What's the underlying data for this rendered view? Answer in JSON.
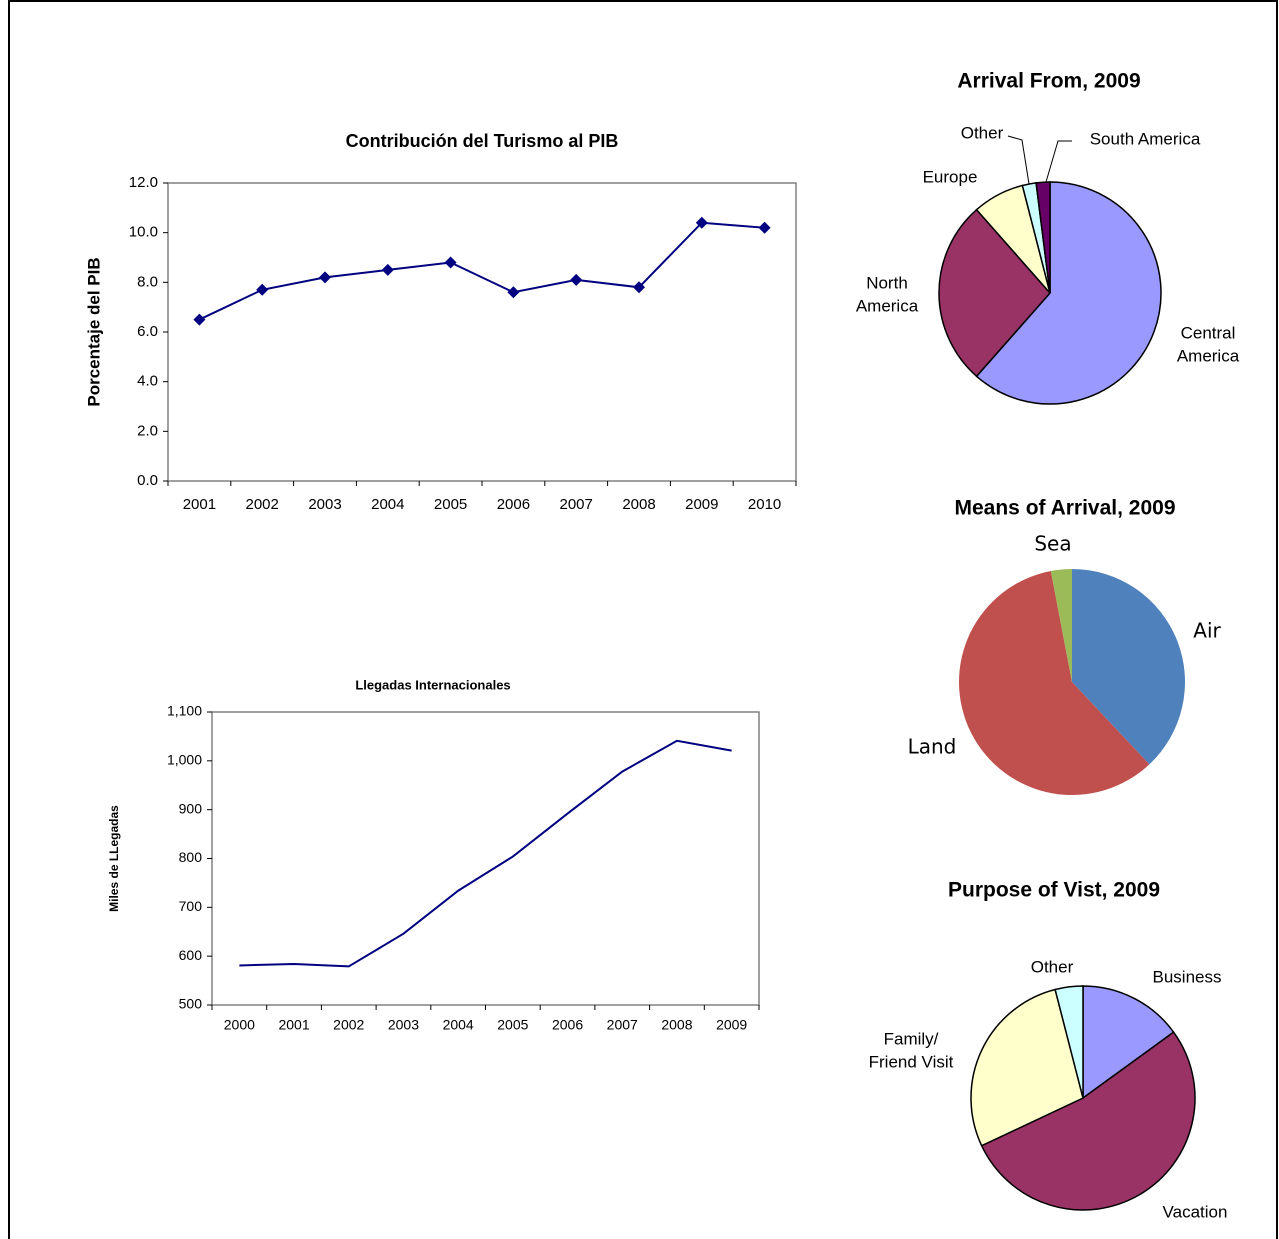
{
  "chart_data": [
    {
      "type": "line",
      "title": "Contribución del Turismo al PIB",
      "y_label": "Porcentaje del PIB",
      "categories": [
        "2001",
        "2002",
        "2003",
        "2004",
        "2005",
        "2006",
        "2007",
        "2008",
        "2009",
        "2010"
      ],
      "values": [
        6.5,
        7.7,
        8.2,
        8.5,
        8.8,
        7.6,
        8.1,
        7.8,
        10.4,
        10.2
      ],
      "color": "#000080",
      "markers": true,
      "grid": false,
      "ylim": [
        0,
        12
      ],
      "yticks": [
        {
          "value": 0,
          "label": "0.0"
        },
        {
          "value": 2,
          "label": "2.0"
        },
        {
          "value": 4,
          "label": "4.0"
        },
        {
          "value": 6,
          "label": "6.0"
        },
        {
          "value": 8,
          "label": "8.0"
        },
        {
          "value": 10,
          "label": "10.0"
        },
        {
          "value": 12,
          "label": "12.0"
        }
      ]
    },
    {
      "type": "line",
      "title": "Llegadas Internacionales",
      "y_label": "Miles de LLegadas",
      "categories": [
        "2000",
        "2001",
        "2002",
        "2003",
        "2004",
        "2005",
        "2006",
        "2007",
        "2008",
        "2009"
      ],
      "values": [
        581,
        584,
        579,
        646,
        734,
        804,
        892,
        978,
        1041,
        1021
      ],
      "color": "#000080",
      "markers": false,
      "grid": false,
      "ylim": [
        500,
        1100
      ],
      "yticks": [
        500,
        600,
        700,
        800,
        900,
        {
          "value": 1000,
          "label": "1,000"
        },
        {
          "value": 1100,
          "label": "1,100"
        }
      ]
    },
    {
      "type": "pie",
      "title": "Arrival From, 2009",
      "categories": [
        "Central\nAmerica",
        "North\nAmerica",
        "Europe",
        "Other",
        "South America"
      ],
      "values": [
        61.5,
        27,
        7.5,
        2,
        2
      ],
      "colors": [
        "#9999ff",
        "#993366",
        "#ffffcc",
        "#ccffff",
        "#660066"
      ]
    },
    {
      "type": "pie",
      "title": "Means of Arrival, 2009",
      "categories": [
        "Air",
        "Land",
        "Sea"
      ],
      "values": [
        38,
        59,
        3
      ],
      "colors": [
        "#4f81bd",
        "#c0504d",
        "#9bbb59"
      ]
    },
    {
      "type": "pie",
      "title": "Purpose of Vist, 2009",
      "categories": [
        "Business",
        "Vacation",
        "Family/\nFriend Visit",
        "Other"
      ],
      "values": [
        15,
        53,
        28,
        4
      ],
      "colors": [
        "#9999ff",
        "#993366",
        "#ffffcc",
        "#ccffff"
      ]
    }
  ]
}
